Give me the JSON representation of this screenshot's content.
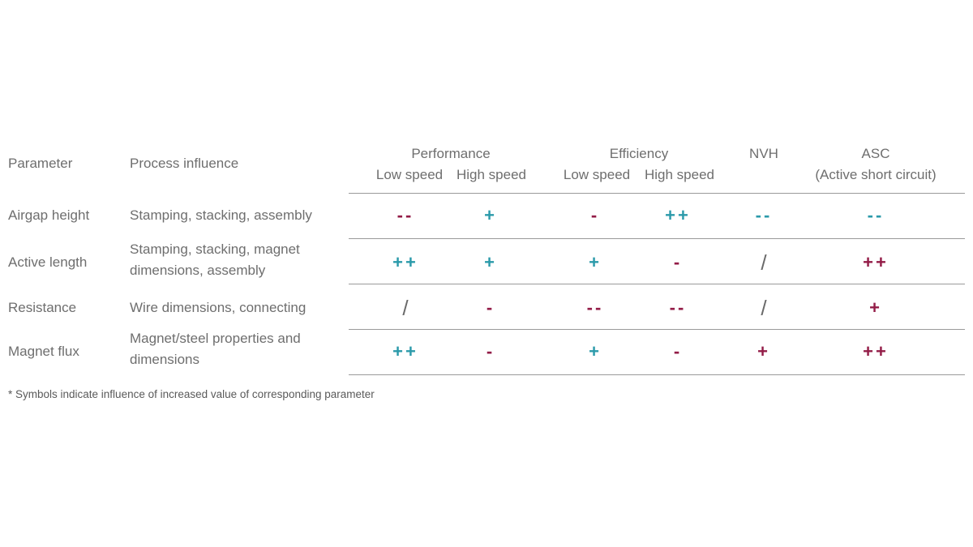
{
  "table": {
    "columns": {
      "parameter": "Parameter",
      "process_influence": "Process influence",
      "performance": "Performance",
      "efficiency": "Efficiency",
      "nvh": "NVH",
      "asc": "ASC",
      "asc_sub": "(Active short circuit)",
      "perf_low": "Low speed",
      "perf_high": "High speed",
      "eff_low": "Low speed",
      "eff_high": "High speed"
    },
    "rows": [
      {
        "parameter": "Airgap height",
        "process": "Stamping, stacking, assembly",
        "perf_low": "--",
        "perf_high": "+",
        "eff_low": "-",
        "eff_high": "++",
        "nvh": "--",
        "asc": "--"
      },
      {
        "parameter": "Active length",
        "process": "Stamping, stacking, magnet dimensions, assembly",
        "perf_low": "++",
        "perf_high": "+",
        "eff_low": "+",
        "eff_high": "-",
        "nvh": "/",
        "asc": "++"
      },
      {
        "parameter": "Resistance",
        "process": "Wire dimensions, connecting",
        "perf_low": "/",
        "perf_high": "-",
        "eff_low": "--",
        "eff_high": "--",
        "nvh": "/",
        "asc": "+"
      },
      {
        "parameter": "Magnet flux",
        "process": "Magnet/steel properties and dimensions",
        "perf_low": "++",
        "perf_high": "-",
        "eff_low": "+",
        "eff_high": "-",
        "nvh": "+",
        "asc": "++"
      }
    ]
  },
  "symbol_colors": {
    "favorable": "#2b9aaa",
    "unfavorable": "#931c47",
    "neutral": "#6a6a6a"
  },
  "cell_colors": {
    "rows": [
      [
        "unfavorable",
        "favorable",
        "unfavorable",
        "favorable",
        "favorable",
        "favorable"
      ],
      [
        "favorable",
        "favorable",
        "favorable",
        "unfavorable",
        "neutral",
        "unfavorable"
      ],
      [
        "neutral",
        "unfavorable",
        "unfavorable",
        "unfavorable",
        "neutral",
        "unfavorable"
      ],
      [
        "favorable",
        "unfavorable",
        "favorable",
        "unfavorable",
        "unfavorable",
        "unfavorable"
      ]
    ]
  },
  "footnote": "* Symbols indicate influence of increased value of corresponding parameter"
}
